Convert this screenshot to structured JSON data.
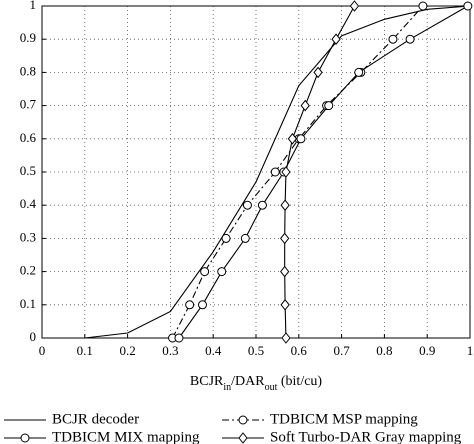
{
  "chart_data": {
    "type": "line",
    "xlabel": [
      "BCJR",
      "in",
      "/DAR",
      "out",
      " (bit/cu)"
    ],
    "xlim": [
      0,
      1
    ],
    "ylim": [
      0,
      1
    ],
    "xticks": [
      0,
      0.1,
      0.2,
      0.3,
      0.4,
      0.5,
      0.6,
      0.7,
      0.8,
      0.9,
      1
    ],
    "yticks": [
      0,
      0.1,
      0.2,
      0.3,
      0.4,
      0.5,
      0.6,
      0.7,
      0.8,
      0.9,
      1
    ],
    "grid": true,
    "series": [
      {
        "name": "BCJR decoder",
        "color": "#000000",
        "style": "solid",
        "marker": "none",
        "x": [
          0,
          0.1,
          0.2,
          0.3,
          0.4,
          0.5,
          0.6,
          0.7,
          0.8,
          0.9,
          1
        ],
        "values": [
          0,
          0,
          0.015,
          0.08,
          0.26,
          0.47,
          0.76,
          0.91,
          0.96,
          0.99,
          1
        ]
      },
      {
        "name": "TDBICM MSP mapping",
        "color": "#000000",
        "style": "dashdot",
        "marker": "circle",
        "x": [
          0.305,
          0.345,
          0.38,
          0.43,
          0.48,
          0.545,
          0.6,
          0.665,
          0.745,
          0.82,
          0.89
        ],
        "values": [
          0,
          0.1,
          0.2,
          0.3,
          0.4,
          0.5,
          0.6,
          0.7,
          0.8,
          0.9,
          1
        ]
      },
      {
        "name": "TDBICM MIX mapping",
        "color": "#000000",
        "style": "solid",
        "marker": "circle",
        "x": [
          0.32,
          0.375,
          0.42,
          0.475,
          0.515,
          0.565,
          0.605,
          0.67,
          0.74,
          0.86,
          0.995
        ],
        "values": [
          0,
          0.1,
          0.2,
          0.3,
          0.4,
          0.5,
          0.6,
          0.7,
          0.8,
          0.9,
          1
        ]
      },
      {
        "name": "Soft Turbo-DAR Gray mapping",
        "color": "#000000",
        "style": "solid",
        "marker": "diamond",
        "x": [
          0.57,
          0.568,
          0.567,
          0.567,
          0.568,
          0.57,
          0.585,
          0.615,
          0.645,
          0.687,
          0.73
        ],
        "values": [
          0,
          0.1,
          0.2,
          0.3,
          0.4,
          0.5,
          0.6,
          0.7,
          0.8,
          0.9,
          1
        ]
      }
    ]
  }
}
